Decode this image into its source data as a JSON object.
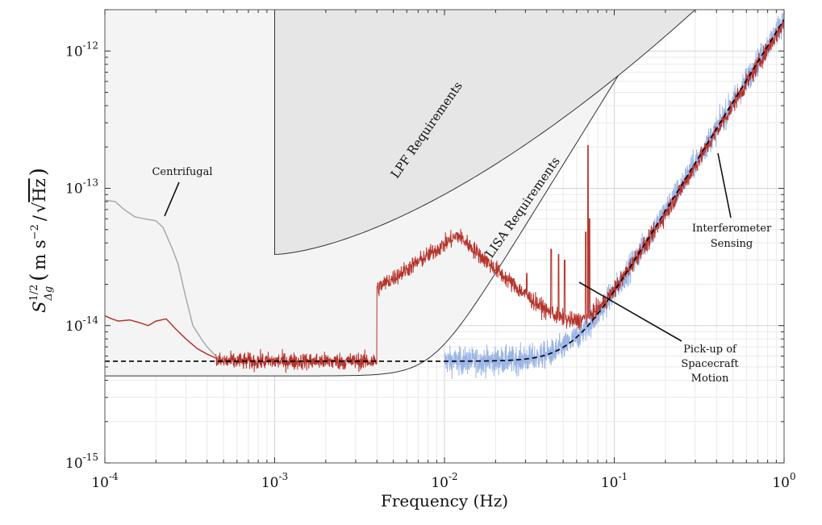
{
  "chart_data": {
    "type": "line",
    "x_scale": "log",
    "y_scale": "log",
    "xlim": [
      0.0001,
      1
    ],
    "ylim": [
      1e-15,
      2e-12
    ],
    "grid": true,
    "xlabel": "Frequency (Hz)",
    "ylabel": {
      "base": "S",
      "superscript": "1/2",
      "subscript": "Δg",
      "units_open": "(",
      "units_main": "m s",
      "units_exp": "−2",
      "units_slash": "/",
      "units_root": "√",
      "units_hz": "Hz",
      "units_close": ")"
    },
    "x_ticks": [
      {
        "value": 0.0001,
        "base": "10",
        "exp": "-4"
      },
      {
        "value": 0.001,
        "base": "10",
        "exp": "-3"
      },
      {
        "value": 0.01,
        "base": "10",
        "exp": "-2"
      },
      {
        "value": 0.1,
        "base": "10",
        "exp": "-1"
      },
      {
        "value": 1,
        "base": "10",
        "exp": "0"
      }
    ],
    "y_ticks": [
      {
        "value": 1e-15,
        "base": "10",
        "exp": "-15"
      },
      {
        "value": 1e-14,
        "base": "10",
        "exp": "-14"
      },
      {
        "value": 1e-13,
        "base": "10",
        "exp": "-13"
      },
      {
        "value": 1e-12,
        "base": "10",
        "exp": "-12"
      }
    ],
    "regions": [
      {
        "label": "LISA Requirements",
        "floor": 4.3e-15,
        "f_start": 0.0001,
        "knee_hz": 0.0085,
        "fill": "#f4f4f4",
        "stroke": "#333333"
      },
      {
        "label": "LPF Requirements",
        "f_start": 0.001,
        "floor_at_start": 3.3e-14,
        "f_top": 0.3,
        "fill": "#e6e6e6",
        "stroke": "#333333"
      }
    ],
    "series": [
      {
        "color": "#a9a9a9",
        "points": [
          [
            0.0001,
            8.2e-14
          ],
          [
            0.000115,
            8e-14
          ],
          [
            0.00013,
            7e-14
          ],
          [
            0.00015,
            6.2e-14
          ],
          [
            0.00017,
            6e-14
          ],
          [
            0.0002,
            5.8e-14
          ],
          [
            0.00022,
            5.2e-14
          ],
          [
            0.00025,
            3.6e-14
          ],
          [
            0.00027,
            2.8e-14
          ],
          [
            0.0003,
            1.6e-14
          ],
          [
            0.00033,
            1e-14
          ],
          [
            0.00037,
            8e-15
          ],
          [
            0.0004,
            7e-15
          ],
          [
            0.00045,
            6e-15
          ]
        ]
      },
      {
        "color": "#b5332b",
        "points": [
          [
            0.0001,
            1.18e-14
          ],
          [
            0.00011,
            1.12e-14
          ],
          [
            0.00012,
            1.08e-14
          ],
          [
            0.00014,
            1.1e-14
          ],
          [
            0.00016,
            1.05e-14
          ],
          [
            0.00018,
            1e-14
          ],
          [
            0.0002,
            1.08e-14
          ],
          [
            0.00023,
            1.12e-14
          ],
          [
            0.00026,
            9.5e-15
          ],
          [
            0.0003,
            8e-15
          ],
          [
            0.00035,
            6.8e-15
          ],
          [
            0.0004,
            6.2e-15
          ],
          [
            0.00045,
            5.8e-15
          ]
        ]
      }
    ],
    "noisy_series": [
      {
        "color": "#9bb5e6",
        "f_start": 0.01,
        "f_end": 1,
        "model": "interferometer+flat",
        "amplitude_floor": 5.5e-15,
        "noise_dex": 0.07
      },
      {
        "color": "#b5332b",
        "f_start": 0.00045,
        "f_end": 1,
        "model": "pickup",
        "amplitude_floor": 5.5e-15,
        "noise_dex": 0.045,
        "peaks": [
          [
            0.0425,
            3.6e-14
          ],
          [
            0.047,
            3.3e-14
          ],
          [
            0.051,
            3e-14
          ],
          [
            0.068,
            4.8e-14
          ],
          [
            0.07,
            2.05e-13
          ],
          [
            0.0715,
            6e-14
          ],
          [
            0.0305,
            2.4e-14
          ]
        ]
      }
    ],
    "model_curve": {
      "color": "#000000",
      "dashed": true,
      "floor": 5.5e-15,
      "ref_freq": 1,
      "ref_value": 1.7e-12
    },
    "annotations": [
      {
        "lines": [
          "Centrifugal"
        ],
        "arrow_to": [
          0.00017,
          6e-14
        ]
      },
      {
        "lines": [
          "Interferometer",
          "Sensing"
        ],
        "arrow_to": [
          0.3,
          1.3e-13
        ]
      },
      {
        "lines": [
          "Pick-up of",
          "Spacecraft",
          "Motion"
        ],
        "arrow_to": [
          0.055,
          2e-14
        ]
      }
    ],
    "colors": {
      "grid_major": "#d3d3d3",
      "grid_minor": "#e9e9e9",
      "axes": "#555555"
    }
  }
}
